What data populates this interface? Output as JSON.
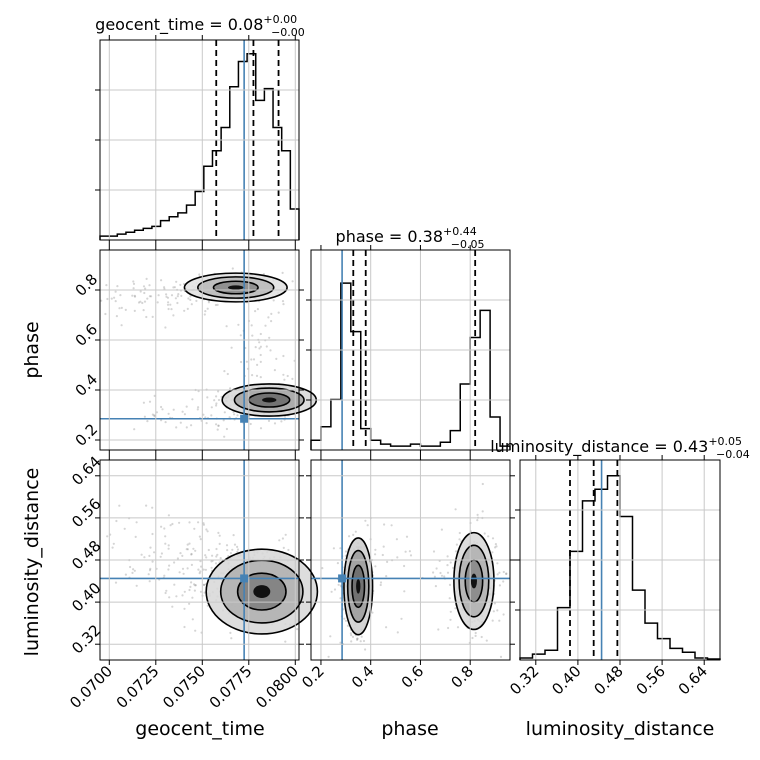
{
  "chart_data": {
    "type": "corner",
    "parameters": [
      "geocent_time",
      "phase",
      "luminosity_distance"
    ],
    "truths": {
      "geocent_time": 0.07725,
      "phase": 0.285,
      "luminosity_distance": 0.445
    },
    "colors": {
      "truth": "#4682b4",
      "hist": "#000000",
      "grid": "#c8c8c8",
      "quantile": "#000000",
      "samples": "#888888"
    },
    "titles": {
      "geocent_time": {
        "name": "geocent_time",
        "value": "0.08",
        "plus": "+0.00",
        "minus": "−0.00"
      },
      "phase": {
        "name": "phase",
        "value": "0.38",
        "plus": "+0.44",
        "minus": "−0.05"
      },
      "luminosity_distance": {
        "name": "luminosity_distance",
        "value": "0.43",
        "plus": "+0.05",
        "minus": "−0.04"
      }
    },
    "axis_labels": {
      "geocent_time": "geocent_time",
      "phase": "phase",
      "luminosity_distance": "luminosity_distance"
    },
    "ticks": {
      "geocent_time": {
        "values": [
          0.07,
          0.0725,
          0.075,
          0.0775,
          0.08
        ],
        "labels": [
          "0.0700",
          "0.0725",
          "0.0750",
          "0.0775",
          "0.0800"
        ]
      },
      "phase": {
        "values": [
          0.2,
          0.4,
          0.6,
          0.8
        ],
        "labels": [
          "0.2",
          "0.4",
          "0.6",
          "0.8"
        ]
      },
      "luminosity_distance": {
        "values": [
          0.32,
          0.4,
          0.48,
          0.56,
          0.64
        ],
        "labels": [
          "0.32",
          "0.40",
          "0.48",
          "0.56",
          "0.64"
        ]
      }
    },
    "ranges": {
      "geocent_time": [
        0.0695,
        0.0802
      ],
      "phase": [
        0.16,
        0.96
      ],
      "luminosity_distance": [
        0.29,
        0.67
      ]
    },
    "quantiles": {
      "geocent_time": [
        0.07575,
        0.07775,
        0.0791
      ],
      "phase": [
        0.33,
        0.38,
        0.82
      ],
      "luminosity_distance": [
        0.385,
        0.43,
        0.475
      ]
    },
    "histograms": {
      "geocent_time": [
        0.02,
        0.02,
        0.03,
        0.04,
        0.05,
        0.06,
        0.07,
        0.1,
        0.12,
        0.14,
        0.18,
        0.25,
        0.38,
        0.46,
        0.58,
        0.79,
        0.92,
        0.96,
        0.72,
        0.78,
        0.58,
        0.46,
        0.16
      ],
      "phase": [
        0.05,
        0.12,
        0.26,
        0.86,
        0.61,
        0.11,
        0.05,
        0.03,
        0.02,
        0.02,
        0.03,
        0.02,
        0.02,
        0.04,
        0.1,
        0.34,
        0.58,
        0.72,
        0.17,
        0.02
      ],
      "luminosity_distance": [
        0.01,
        0.03,
        0.05,
        0.27,
        0.56,
        0.82,
        0.88,
        0.95,
        0.74,
        0.36,
        0.19,
        0.11,
        0.06,
        0.04,
        0.01,
        0.005
      ]
    },
    "sample_clusters": [
      {
        "x": "geocent_time",
        "y": "phase",
        "cx": 0.0785,
        "cy": 0.36,
        "sx": 0.0015,
        "sy": 0.035,
        "n": 260
      },
      {
        "x": "geocent_time",
        "y": "phase",
        "cx": 0.0768,
        "cy": 0.81,
        "sx": 0.0013,
        "sy": 0.03,
        "n": 170
      },
      {
        "x": "geocent_time",
        "y": "phase",
        "cx": 0.073,
        "cy": 0.76,
        "sx": 0.0025,
        "sy": 0.04,
        "n": 90
      },
      {
        "x": "geocent_time",
        "y": "phase",
        "cx": 0.0755,
        "cy": 0.3,
        "sx": 0.002,
        "sy": 0.03,
        "n": 70
      },
      {
        "x": "geocent_time",
        "y": "phase",
        "cx": 0.0782,
        "cy": 0.58,
        "sx": 0.0008,
        "sy": 0.12,
        "n": 60
      },
      {
        "x": "geocent_time",
        "y": "luminosity_distance",
        "cx": 0.0778,
        "cy": 0.43,
        "sx": 0.0018,
        "sy": 0.04,
        "n": 330
      },
      {
        "x": "geocent_time",
        "y": "luminosity_distance",
        "cx": 0.0735,
        "cy": 0.49,
        "sx": 0.0025,
        "sy": 0.045,
        "n": 110
      },
      {
        "x": "phase",
        "y": "luminosity_distance",
        "cx": 0.35,
        "cy": 0.43,
        "sx": 0.035,
        "sy": 0.045,
        "n": 240
      },
      {
        "x": "phase",
        "y": "luminosity_distance",
        "cx": 0.82,
        "cy": 0.44,
        "sx": 0.05,
        "sy": 0.05,
        "n": 220
      },
      {
        "x": "phase",
        "y": "luminosity_distance",
        "cx": 0.55,
        "cy": 0.45,
        "sx": 0.2,
        "sy": 0.07,
        "n": 60
      }
    ],
    "contours": [
      {
        "x": "geocent_time",
        "y": "phase",
        "cx": 0.0786,
        "cy": 0.36,
        "sx": 0.0011,
        "sy": 0.028,
        "levels": [
          1.0,
          1.7,
          2.3
        ],
        "shade": [
          0.2,
          0.45,
          0.75
        ]
      },
      {
        "x": "geocent_time",
        "y": "phase",
        "cx": 0.0768,
        "cy": 0.81,
        "sx": 0.0012,
        "sy": 0.025,
        "levels": [
          1.0,
          1.7,
          2.3
        ],
        "shade": [
          0.15,
          0.35,
          0.6
        ]
      },
      {
        "x": "geocent_time",
        "y": "luminosity_distance",
        "cx": 0.0782,
        "cy": 0.42,
        "sx": 0.0013,
        "sy": 0.035,
        "levels": [
          1.0,
          1.7,
          2.3
        ],
        "shade": [
          0.2,
          0.4,
          0.65
        ]
      },
      {
        "x": "phase",
        "y": "luminosity_distance",
        "cx": 0.35,
        "cy": 0.43,
        "sx": 0.025,
        "sy": 0.04,
        "levels": [
          1.0,
          1.7,
          2.3
        ],
        "shade": [
          0.25,
          0.5,
          0.75
        ]
      },
      {
        "x": "phase",
        "y": "luminosity_distance",
        "cx": 0.815,
        "cy": 0.44,
        "sx": 0.035,
        "sy": 0.04,
        "levels": [
          1.0,
          1.7,
          2.3
        ],
        "shade": [
          0.2,
          0.4,
          0.6
        ]
      }
    ],
    "grid": true
  }
}
